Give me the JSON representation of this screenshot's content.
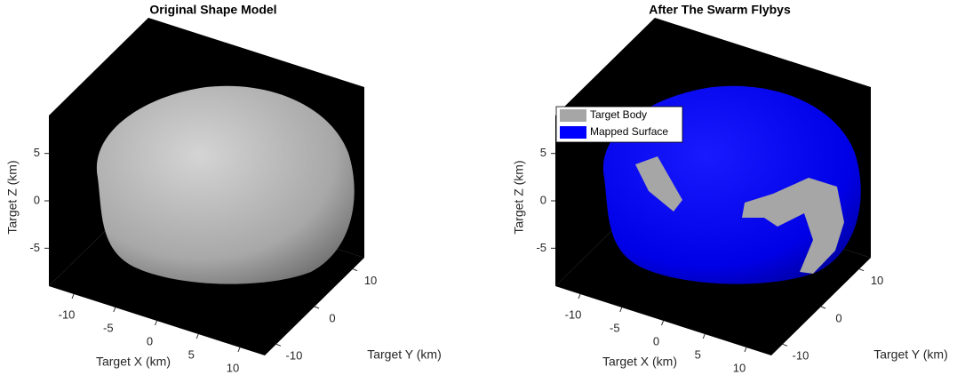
{
  "chart_data": [
    {
      "type": "surface3d",
      "title": "Original Shape Model",
      "xlabel": "Target X (km)",
      "ylabel": "Target Y (km)",
      "zlabel": "Target Z (km)",
      "xlim": [
        -13,
        13
      ],
      "ylim": [
        -13,
        13
      ],
      "zlim": [
        -9,
        9
      ],
      "xticks": [
        -10,
        -5,
        0,
        5,
        10
      ],
      "yticks": [
        -10,
        0,
        10
      ],
      "zticks": [
        -5,
        0,
        5
      ],
      "series": [
        {
          "name": "Target Body",
          "color": "#a6a6a6"
        }
      ]
    },
    {
      "type": "surface3d",
      "title": "After The Swarm Flybys",
      "xlabel": "Target X (km)",
      "ylabel": "Target Y (km)",
      "zlabel": "Target Z (km)",
      "xlim": [
        -13,
        13
      ],
      "ylim": [
        -13,
        13
      ],
      "zlim": [
        -9,
        9
      ],
      "xticks": [
        -10,
        -5,
        0,
        5,
        10
      ],
      "yticks": [
        -10,
        0,
        10
      ],
      "zticks": [
        -5,
        0,
        5
      ],
      "series": [
        {
          "name": "Target Body",
          "color": "#a6a6a6"
        },
        {
          "name": "Mapped Surface",
          "color": "#0000ff"
        }
      ],
      "legend": "upper left"
    }
  ]
}
